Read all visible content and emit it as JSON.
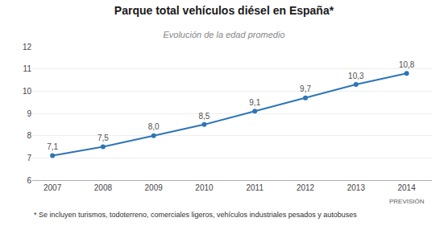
{
  "chart_data": {
    "type": "line",
    "title": "Parque total vehículos diésel en España*",
    "subtitle": "Evolución de la edad promedio",
    "footnote": "* Se incluyen turismos, todoterreno, comerciales ligeros, vehículos industriales pesados y autobuses",
    "x": [
      2007,
      2008,
      2009,
      2010,
      2011,
      2012,
      2013,
      2014
    ],
    "values": [
      7.1,
      7.5,
      8.0,
      8.5,
      9.1,
      9.7,
      10.3,
      10.8
    ],
    "value_labels": [
      "7,1",
      "7,5",
      "8,0",
      "8,5",
      "9,1",
      "9,7",
      "10,3",
      "10,8"
    ],
    "data_labels": true,
    "color": "#2e75b6",
    "marker": "circle",
    "line_style": "solid",
    "xlim": [
      2006.6,
      2014.5
    ],
    "xticks": [
      2007,
      2008,
      2009,
      2010,
      2011,
      2012,
      2013,
      2014
    ],
    "ylim": [
      6,
      12
    ],
    "yticks": [
      6,
      7,
      8,
      9,
      10,
      11,
      12
    ],
    "grid": true,
    "annotations": [
      {
        "x": 2014,
        "text": "PREVISIÓN"
      }
    ]
  }
}
